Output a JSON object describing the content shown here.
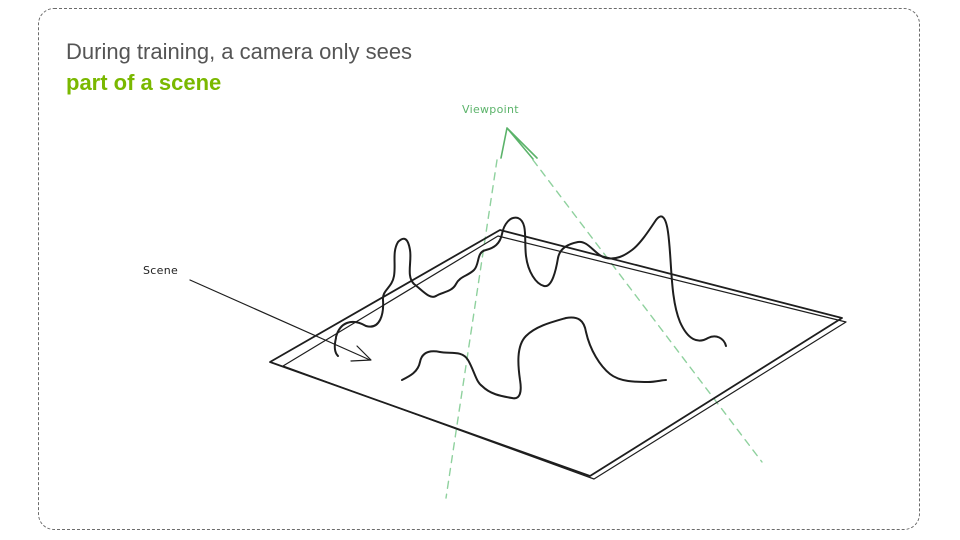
{
  "title": {
    "line1": "During training, a camera only sees",
    "line2": "part of a scene"
  },
  "labels": {
    "viewpoint": "Viewpoint",
    "scene": "Scene"
  },
  "colors": {
    "accent": "#7ab800",
    "viewpoint": "#5bb36a",
    "ink": "#1e1e1e",
    "text": "#555555",
    "border": "#6b6b6b"
  }
}
